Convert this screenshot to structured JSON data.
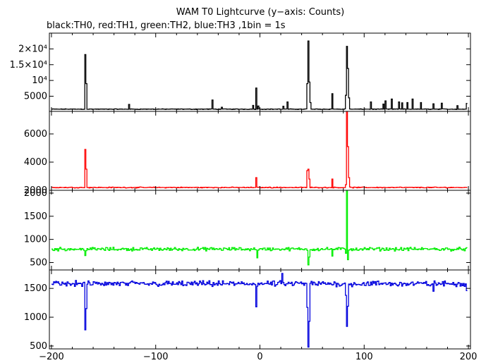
{
  "chart_data": {
    "type": "line",
    "title": "WAM T0 Lightcurve (y−axis: Counts)",
    "subtitle": "black:TH0, red:TH1, green:TH2, blue:TH3 ,1bin = 1s",
    "xlabel": "",
    "ylabel": "",
    "xlim": [
      -202,
      202
    ],
    "x_ticks": [
      -200,
      -100,
      0,
      100,
      200
    ],
    "x_tick_labels": [
      "−200",
      "−100",
      "0",
      "100",
      "200"
    ],
    "grid": false,
    "legend": "none",
    "panels": [
      {
        "name": "TH0",
        "color": "#000000",
        "ylim": [
          200,
          25000
        ],
        "y_ticks": [
          5000,
          10000,
          15000,
          20000
        ],
        "y_tick_labels": [
          "5000",
          "10⁴",
          "1.5×10⁴",
          "2×10⁴"
        ],
        "baseline": 900,
        "noise": 120,
        "features": [
          {
            "x": -168,
            "value": 18200
          },
          {
            "x": -167,
            "value": 9000
          },
          {
            "x": -126,
            "value": 2400
          },
          {
            "x": -46,
            "value": 3800
          },
          {
            "x": -37,
            "value": 1500
          },
          {
            "x": -7,
            "value": 2100
          },
          {
            "x": -4,
            "value": 7600
          },
          {
            "x": -2,
            "value": 1900
          },
          {
            "x": 22,
            "value": 1800
          },
          {
            "x": 26,
            "value": 3200
          },
          {
            "x": 45,
            "value": 9000
          },
          {
            "x": 46,
            "value": 22500
          },
          {
            "x": 47,
            "value": 9500
          },
          {
            "x": 48,
            "value": 3000
          },
          {
            "x": 69,
            "value": 5800
          },
          {
            "x": 82,
            "value": 5300
          },
          {
            "x": 83,
            "value": 20800
          },
          {
            "x": 84,
            "value": 13800
          },
          {
            "x": 85,
            "value": 4500
          },
          {
            "x": 106,
            "value": 3200
          },
          {
            "x": 118,
            "value": 2500
          },
          {
            "x": 120,
            "value": 3500
          },
          {
            "x": 126,
            "value": 4100
          },
          {
            "x": 133,
            "value": 3200
          },
          {
            "x": 136,
            "value": 2900
          },
          {
            "x": 141,
            "value": 3000
          },
          {
            "x": 146,
            "value": 4100
          },
          {
            "x": 154,
            "value": 3000
          },
          {
            "x": 166,
            "value": 2600
          },
          {
            "x": 174,
            "value": 2800
          },
          {
            "x": 189,
            "value": 2000
          },
          {
            "x": 198,
            "value": 2700
          }
        ]
      },
      {
        "name": "TH1",
        "color": "#ff0000",
        "ylim": [
          2000,
          7600
        ],
        "y_ticks": [
          2000,
          4000,
          6000
        ],
        "y_tick_labels": [
          "2000",
          "4000",
          "6000"
        ],
        "baseline": 2200,
        "noise": 40,
        "features": [
          {
            "x": -168,
            "value": 4900
          },
          {
            "x": -167,
            "value": 3500
          },
          {
            "x": -4,
            "value": 2900
          },
          {
            "x": 45,
            "value": 3400
          },
          {
            "x": 46,
            "value": 3500
          },
          {
            "x": 47,
            "value": 2800
          },
          {
            "x": 69,
            "value": 2800
          },
          {
            "x": 82,
            "value": 2400
          },
          {
            "x": 83,
            "value": 7600
          },
          {
            "x": 84,
            "value": 5100
          },
          {
            "x": 85,
            "value": 2900
          }
        ]
      },
      {
        "name": "TH2",
        "color": "#00ee00",
        "ylim": [
          340,
          2060
        ],
        "y_ticks": [
          500,
          1000,
          1500,
          2000
        ],
        "y_tick_labels": [
          "500",
          "1000",
          "1500",
          "2000"
        ],
        "baseline": 790,
        "noise": 45,
        "features": [
          {
            "x": -168,
            "value": 650
          },
          {
            "x": -3,
            "value": 600
          },
          {
            "x": 46,
            "value": 450
          },
          {
            "x": 47,
            "value": 620
          },
          {
            "x": 69,
            "value": 640
          },
          {
            "x": 82,
            "value": 700
          },
          {
            "x": 83,
            "value": 2050
          },
          {
            "x": 84,
            "value": 560
          }
        ]
      },
      {
        "name": "TH3",
        "color": "#0000dd",
        "ylim": [
          450,
          1820
        ],
        "y_ticks": [
          500,
          1000,
          1500
        ],
        "y_tick_labels": [
          "500",
          "1000",
          "1500"
        ],
        "baseline": 1580,
        "noise": 60,
        "features": [
          {
            "x": -168,
            "value": 780
          },
          {
            "x": -167,
            "value": 1150
          },
          {
            "x": -4,
            "value": 1180
          },
          {
            "x": 21,
            "value": 1760
          },
          {
            "x": 45,
            "value": 1170
          },
          {
            "x": 46,
            "value": 480
          },
          {
            "x": 47,
            "value": 930
          },
          {
            "x": 82,
            "value": 1380
          },
          {
            "x": 83,
            "value": 840
          },
          {
            "x": 84,
            "value": 1190
          },
          {
            "x": 166,
            "value": 1450
          },
          {
            "x": 198,
            "value": 1460
          }
        ]
      }
    ]
  }
}
